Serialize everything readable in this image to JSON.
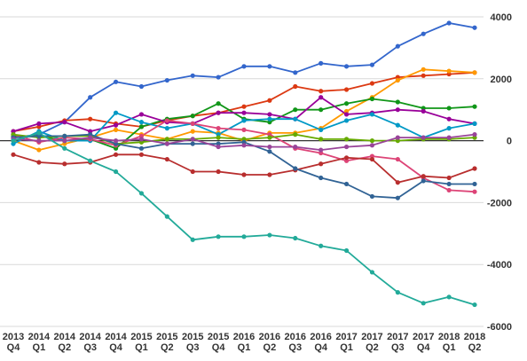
{
  "chart_data": {
    "type": "line",
    "title": "",
    "xlabel": "",
    "ylabel": "",
    "grid": "horizontal",
    "legend": "none",
    "y_axis_side": "right",
    "ylim": [
      -6000,
      4000
    ],
    "yticks": [
      4000,
      2000,
      0,
      -2000,
      -4000,
      -6000
    ],
    "ytick_labels": [
      "4000",
      "2000",
      "0",
      "-2000",
      "-4000",
      "-6000"
    ],
    "categories": [
      [
        "2013",
        "Q4"
      ],
      [
        "2014",
        "Q1"
      ],
      [
        "2014",
        "Q2"
      ],
      [
        "2014",
        "Q3"
      ],
      [
        "2014",
        "Q4"
      ],
      [
        "2015",
        "Q1"
      ],
      [
        "2015",
        "Q2"
      ],
      [
        "2015",
        "Q3"
      ],
      [
        "2015",
        "Q4"
      ],
      [
        "2016",
        "Q1"
      ],
      [
        "2016",
        "Q2"
      ],
      [
        "2016",
        "Q3"
      ],
      [
        "2016",
        "Q4"
      ],
      [
        "2017",
        "Q1"
      ],
      [
        "2017",
        "Q2"
      ],
      [
        "2017",
        "Q3"
      ],
      [
        "2017",
        "Q4"
      ],
      [
        "2018",
        "Q1"
      ],
      [
        "2018",
        "Q2"
      ]
    ],
    "series": [
      {
        "color": "#3366cc",
        "values": [
          100,
          200,
          600,
          1400,
          1900,
          1750,
          1950,
          2100,
          2050,
          2400,
          2400,
          2200,
          2500,
          2400,
          2450,
          3050,
          3450,
          3800,
          3650
        ]
      },
      {
        "color": "#dc3912",
        "values": [
          300,
          450,
          650,
          700,
          550,
          450,
          650,
          800,
          900,
          1100,
          1300,
          1750,
          1600,
          1650,
          1850,
          2050,
          2100,
          2150,
          2200
        ]
      },
      {
        "color": "#ff9900",
        "values": [
          0,
          -300,
          -100,
          100,
          350,
          200,
          50,
          300,
          250,
          0,
          250,
          250,
          400,
          950,
          1400,
          1950,
          2300,
          2250,
          2200
        ]
      },
      {
        "color": "#109618",
        "values": [
          150,
          150,
          0,
          50,
          -250,
          450,
          700,
          800,
          1200,
          700,
          600,
          1000,
          1000,
          1200,
          1350,
          1250,
          1050,
          1050,
          1100
        ]
      },
      {
        "color": "#990099",
        "values": [
          300,
          550,
          600,
          300,
          500,
          850,
          600,
          550,
          900,
          900,
          850,
          700,
          1400,
          850,
          900,
          1000,
          950,
          700,
          550
        ]
      },
      {
        "color": "#0099c6",
        "values": [
          -100,
          300,
          0,
          0,
          900,
          600,
          400,
          550,
          200,
          650,
          700,
          700,
          350,
          650,
          850,
          500,
          100,
          400,
          550
        ]
      },
      {
        "color": "#dd4477",
        "values": [
          200,
          -50,
          100,
          50,
          -150,
          150,
          650,
          550,
          400,
          350,
          200,
          -250,
          -400,
          -650,
          -500,
          -600,
          -1200,
          -1600,
          -1650
        ]
      },
      {
        "color": "#66aa00",
        "values": [
          200,
          100,
          150,
          150,
          -100,
          -50,
          50,
          50,
          100,
          50,
          100,
          200,
          50,
          50,
          0,
          0,
          50,
          50,
          100
        ]
      },
      {
        "color": "#b82e2e",
        "values": [
          -450,
          -700,
          -750,
          -700,
          -450,
          -450,
          -600,
          -1000,
          -1000,
          -1100,
          -1100,
          -950,
          -750,
          -550,
          -600,
          -1350,
          -1150,
          -1200,
          -900
        ]
      },
      {
        "color": "#316395",
        "values": [
          100,
          150,
          150,
          200,
          -100,
          -250,
          -100,
          -100,
          -100,
          -50,
          -350,
          -900,
          -1200,
          -1400,
          -1800,
          -1850,
          -1300,
          -1400,
          -1400
        ]
      },
      {
        "color": "#994499",
        "values": [
          50,
          0,
          0,
          100,
          0,
          50,
          -100,
          50,
          -200,
          -150,
          -200,
          -200,
          -300,
          -200,
          -150,
          100,
          100,
          100,
          200
        ]
      },
      {
        "color": "#22aa99",
        "values": [
          0,
          250,
          -250,
          -650,
          -1000,
          -1700,
          -2450,
          -3200,
          -3100,
          -3100,
          -3050,
          -3150,
          -3400,
          -3550,
          -4250,
          -4900,
          -5250,
          -5050,
          -5300
        ]
      }
    ]
  }
}
